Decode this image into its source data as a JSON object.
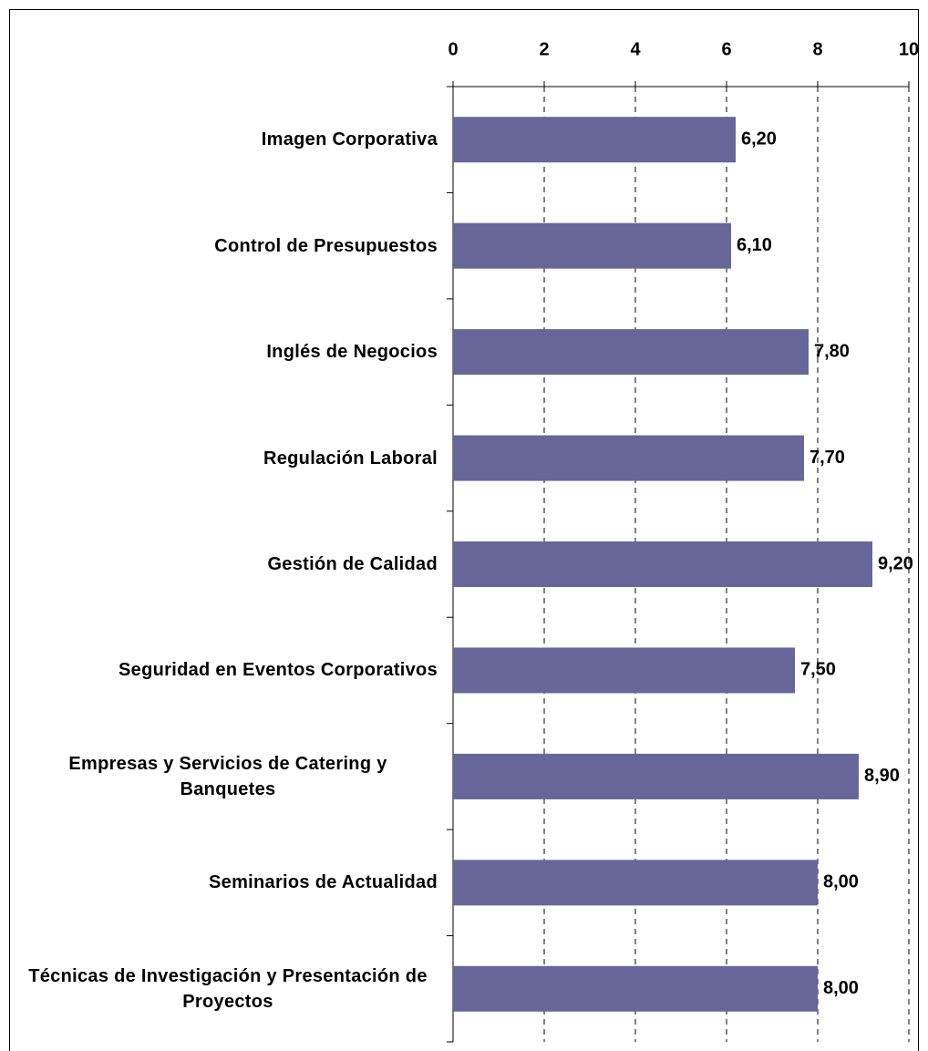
{
  "chart_data": {
    "type": "bar",
    "orientation": "horizontal",
    "categories": [
      "Imagen Corporativa",
      "Control de Presupuestos",
      "Inglés de Negocios",
      "Regulación Laboral",
      "Gestión de Calidad",
      "Seguridad en Eventos Corporativos",
      "Empresas y Servicios de Catering y Banquetes",
      "Seminarios de Actualidad",
      "Técnicas de Investigación y Presentación de Proyectos"
    ],
    "values": [
      6.2,
      6.1,
      7.8,
      7.7,
      9.2,
      7.5,
      8.9,
      8.0,
      8.0
    ],
    "value_labels": [
      "6,20",
      "6,10",
      "7,80",
      "7,70",
      "9,20",
      "7,50",
      "8,90",
      "8,00",
      "8,00"
    ],
    "color": "#666699",
    "xlim": [
      0,
      10
    ],
    "xticks": [
      0,
      2,
      4,
      6,
      8,
      10
    ],
    "grid": true,
    "grid_style": "dashed",
    "axis_position": "top"
  }
}
